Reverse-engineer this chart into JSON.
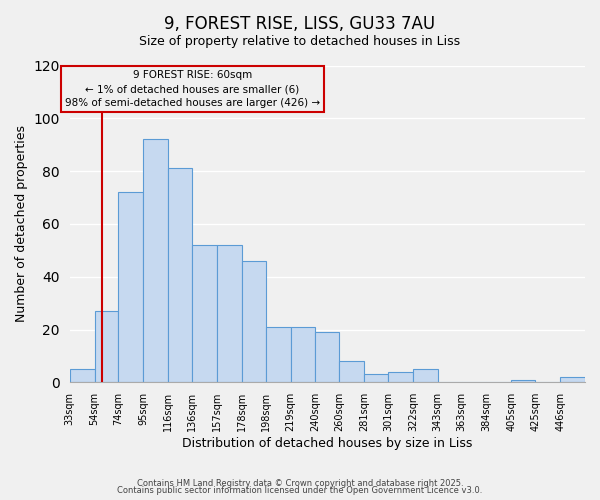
{
  "title": "9, FOREST RISE, LISS, GU33 7AU",
  "subtitle": "Size of property relative to detached houses in Liss",
  "xlabel": "Distribution of detached houses by size in Liss",
  "ylabel": "Number of detached properties",
  "bar_color": "#c6d9f0",
  "bar_edge_color": "#5b9bd5",
  "vline_color": "#cc0000",
  "vline_x": 60,
  "annotation_title": "9 FOREST RISE: 60sqm",
  "annotation_line1": "← 1% of detached houses are smaller (6)",
  "annotation_line2": "98% of semi-detached houses are larger (426) →",
  "bin_edges": [
    33,
    54,
    74,
    95,
    116,
    136,
    157,
    178,
    198,
    219,
    240,
    260,
    281,
    301,
    322,
    343,
    363,
    384,
    405,
    425,
    446,
    467
  ],
  "bin_labels": [
    "33sqm",
    "54sqm",
    "74sqm",
    "95sqm",
    "116sqm",
    "136sqm",
    "157sqm",
    "178sqm",
    "198sqm",
    "219sqm",
    "240sqm",
    "260sqm",
    "281sqm",
    "301sqm",
    "322sqm",
    "343sqm",
    "363sqm",
    "384sqm",
    "405sqm",
    "425sqm",
    "446sqm"
  ],
  "counts": [
    5,
    27,
    72,
    92,
    81,
    52,
    52,
    46,
    21,
    21,
    19,
    8,
    3,
    4,
    5,
    0,
    0,
    0,
    1,
    0,
    2
  ],
  "ylim": [
    0,
    120
  ],
  "yticks": [
    0,
    20,
    40,
    60,
    80,
    100,
    120
  ],
  "footer_line1": "Contains HM Land Registry data © Crown copyright and database right 2025.",
  "footer_line2": "Contains public sector information licensed under the Open Government Licence v3.0.",
  "background_color": "#f0f0f0"
}
